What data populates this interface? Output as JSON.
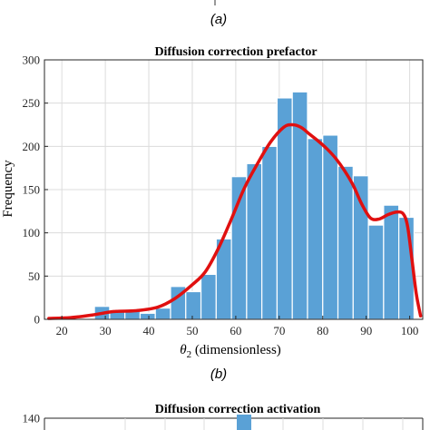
{
  "top_panel": {
    "label": "(a)"
  },
  "middle_panel": {
    "label": "(b)"
  },
  "chart_data": [
    {
      "type": "bar",
      "title": "Diffusion correction prefactor",
      "xlabel_symbol": "θ",
      "xlabel_sub": "2",
      "xlabel_rest": " (dimensionless)",
      "ylabel": "Frequency",
      "xlim": [
        16,
        103
      ],
      "ylim": [
        0,
        300
      ],
      "xticks": [
        20,
        30,
        40,
        50,
        60,
        70,
        80,
        90,
        100
      ],
      "yticks": [
        0,
        50,
        100,
        150,
        200,
        250,
        300
      ],
      "grid": true,
      "bar_color": "#5aa1d6",
      "bin_width": 3.5,
      "bins": [
        {
          "start": 27.5,
          "value": 15
        },
        {
          "start": 31.0,
          "value": 9
        },
        {
          "start": 34.5,
          "value": 10
        },
        {
          "start": 38.0,
          "value": 7
        },
        {
          "start": 41.5,
          "value": 13
        },
        {
          "start": 45.0,
          "value": 38
        },
        {
          "start": 48.5,
          "value": 32
        },
        {
          "start": 52.0,
          "value": 52
        },
        {
          "start": 55.5,
          "value": 93
        },
        {
          "start": 59.0,
          "value": 165
        },
        {
          "start": 62.5,
          "value": 180
        },
        {
          "start": 66.0,
          "value": 200
        },
        {
          "start": 69.5,
          "value": 256
        },
        {
          "start": 73.0,
          "value": 263
        },
        {
          "start": 76.5,
          "value": 209
        },
        {
          "start": 80.0,
          "value": 213
        },
        {
          "start": 83.5,
          "value": 177
        },
        {
          "start": 87.0,
          "value": 166
        },
        {
          "start": 90.5,
          "value": 109
        },
        {
          "start": 94.0,
          "value": 132
        },
        {
          "start": 97.5,
          "value": 118
        }
      ],
      "density_curve": {
        "color": "#e01010",
        "x": [
          17,
          22,
          27,
          32,
          37,
          42,
          46,
          50,
          53,
          56,
          59,
          62,
          65,
          68,
          71,
          73,
          75,
          77,
          79,
          81,
          83,
          85,
          87,
          89,
          91,
          93,
          95,
          97,
          98.5,
          99.5,
          100.5,
          101.5,
          102.5
        ],
        "y": [
          1,
          2,
          5,
          9,
          10,
          14,
          24,
          40,
          55,
          82,
          116,
          152,
          180,
          205,
          222,
          225,
          222,
          214,
          206,
          197,
          186,
          172,
          155,
          133,
          117,
          116,
          121,
          124,
          122,
          108,
          70,
          30,
          4
        ]
      }
    },
    {
      "type": "bar",
      "title": "Diffusion correction activation",
      "ylim_top": 140,
      "yticks": [
        140
      ],
      "partial": true
    }
  ]
}
